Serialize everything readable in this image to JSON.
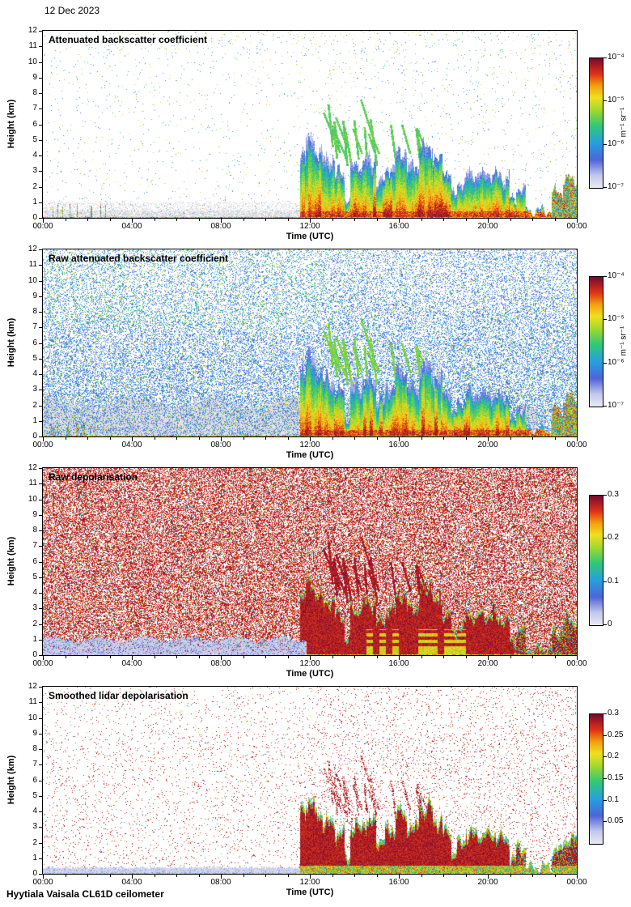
{
  "page": {
    "date_label": "12 Dec 2023",
    "footer_label": "Hyytiala Vaisala CL61D ceilometer"
  },
  "shared": {
    "colormap_stops": [
      [
        0,
        "#ececf4"
      ],
      [
        0.1,
        "#c4c8ec"
      ],
      [
        0.22,
        "#5064d8"
      ],
      [
        0.35,
        "#28a0e0"
      ],
      [
        0.48,
        "#30c878"
      ],
      [
        0.6,
        "#a0d830"
      ],
      [
        0.7,
        "#f0e020"
      ],
      [
        0.79,
        "#f4a010"
      ],
      [
        0.88,
        "#e03418"
      ],
      [
        1,
        "#7a0a32"
      ]
    ],
    "event": {
      "start_utc": 11.55,
      "end_utc": 24,
      "top_km_segments": [
        [
          11.55,
          11.8,
          4.4
        ],
        [
          11.8,
          12.2,
          5.1
        ],
        [
          12.2,
          12.55,
          4.3
        ],
        [
          12.55,
          13.1,
          3.7
        ],
        [
          13.1,
          13.55,
          2.9
        ],
        [
          13.55,
          13.8,
          1.3
        ],
        [
          13.8,
          14.35,
          3.3
        ],
        [
          14.35,
          14.95,
          3.7
        ],
        [
          14.95,
          15.35,
          2.4
        ],
        [
          15.35,
          15.85,
          3.2
        ],
        [
          15.85,
          16.35,
          4.3
        ],
        [
          16.35,
          16.9,
          3.3
        ],
        [
          16.9,
          17.5,
          4.6
        ],
        [
          17.5,
          17.95,
          3.8
        ],
        [
          17.95,
          18.35,
          3.0
        ],
        [
          18.35,
          18.6,
          1.5
        ],
        [
          18.6,
          19.0,
          2.3
        ],
        [
          19.0,
          20.35,
          2.85
        ],
        [
          20.35,
          20.95,
          2.6
        ],
        [
          20.95,
          21.25,
          1.1
        ],
        [
          21.25,
          21.7,
          1.9
        ],
        [
          21.7,
          22.85,
          0.5
        ],
        [
          22.85,
          23.35,
          1.7
        ],
        [
          23.35,
          24.02,
          2.5
        ]
      ],
      "virga_streaks": {
        "count": 22,
        "t_range_utc": [
          12.9,
          17.8
        ],
        "base_km_range": [
          3.1,
          4.7
        ],
        "length_km_range": [
          0.7,
          3.0
        ]
      }
    }
  },
  "chart_data": [
    {
      "type": "heatmap",
      "title": "Attenuated backscatter coefficient",
      "xlabel": "Time (UTC)",
      "ylabel": "Height (km)",
      "xlim_hours": [
        0,
        24
      ],
      "ylim_km": [
        0,
        12
      ],
      "x_ticks": [
        "00:00",
        "04:00",
        "08:00",
        "12:00",
        "16:00",
        "20:00",
        "00:00"
      ],
      "y_ticks": [
        0,
        1,
        2,
        3,
        4,
        5,
        6,
        7,
        8,
        9,
        10,
        11,
        12
      ],
      "colorbar": {
        "scale": "log",
        "min": 1e-07,
        "max": 0.0001,
        "unit": "m⁻¹ sr⁻¹",
        "ticks": [
          {
            "value": 0.0001,
            "label": "10⁻⁴"
          },
          {
            "value": 1e-05,
            "label": "10⁻⁵"
          },
          {
            "value": 1e-06,
            "label": "10⁻⁶"
          },
          {
            "value": 1e-07,
            "label": "10⁻⁷"
          }
        ]
      },
      "summary": "Mostly clear with sparse speckle; shallow grey aerosol layer below ~1 km until ~11:30 UTC with thin coloured columns near 01:00-03:00; precipitating cloud 11:30-24:00 UTC, echo tops 2.5-5 km, strong red/orange backscatter below 1 km; green fall streaks 3-7 km between 13:00 and 17:30 UTC; continuous surface return at 0 km.",
      "render": {
        "style": "bsc_clean",
        "seed": 11
      }
    },
    {
      "type": "heatmap",
      "title": "Raw attenuated backscatter coefficient",
      "xlabel": "Time (UTC)",
      "ylabel": "Height (km)",
      "xlim_hours": [
        0,
        24
      ],
      "ylim_km": [
        0,
        12
      ],
      "x_ticks": [
        "00:00",
        "04:00",
        "08:00",
        "12:00",
        "16:00",
        "20:00",
        "00:00"
      ],
      "y_ticks": [
        0,
        1,
        2,
        3,
        4,
        5,
        6,
        7,
        8,
        9,
        10,
        11,
        12
      ],
      "colorbar": {
        "scale": "log",
        "min": 1e-07,
        "max": 0.0001,
        "unit": "m⁻¹ sr⁻¹",
        "ticks": [
          {
            "value": 0.0001,
            "label": "10⁻⁴"
          },
          {
            "value": 1e-05,
            "label": "10⁻⁵"
          },
          {
            "value": 1e-06,
            "label": "10⁻⁶"
          },
          {
            "value": 1e-07,
            "label": "10⁻⁷"
          }
        ]
      },
      "summary": "Same scene without noise screening: dense blue/green receiver noise over the full range; pale grey region below ~2 km before 12:00 UTC and patchy grey below the rain after 12:00; identical precipitation structures from 11:30 UTC onward.",
      "render": {
        "style": "bsc_raw",
        "seed": 23
      }
    },
    {
      "type": "heatmap",
      "title": "Raw depolarisation",
      "xlabel": "Time (UTC)",
      "ylabel": "Height (km)",
      "xlim_hours": [
        0,
        24
      ],
      "ylim_km": [
        0,
        12
      ],
      "x_ticks": [
        "00:00",
        "04:00",
        "08:00",
        "12:00",
        "16:00",
        "20:00",
        "00:00"
      ],
      "y_ticks": [
        0,
        1,
        2,
        3,
        4,
        5,
        6,
        7,
        8,
        9,
        10,
        11,
        12
      ],
      "colorbar": {
        "scale": "linear",
        "min": 0,
        "max": 0.3,
        "ticks": [
          {
            "value": 0,
            "label": "0"
          },
          {
            "value": 0.1,
            "label": "0.1"
          },
          {
            "value": 0.2,
            "label": "0.2"
          },
          {
            "value": 0.3,
            "label": "0.3"
          }
        ]
      },
      "summary": "Raw depolarisation dominated by dark-red (~0.3) noise everywhere there is no signal; low-depolarisation blue/lavender boundary layer below ~1 km until ~12:00 UTC; solid high-depolarisation precipitation cores after 11:30 UTC with orange/yellow/green fringes below 2 km.",
      "render": {
        "style": "depol_raw",
        "seed": 37
      }
    },
    {
      "type": "heatmap",
      "title": "Smoothed lidar depolarisation",
      "xlabel": "Time (UTC)",
      "ylabel": "Height (km)",
      "xlim_hours": [
        0,
        24
      ],
      "ylim_km": [
        0,
        12
      ],
      "x_ticks": [
        "00:00",
        "04:00",
        "08:00",
        "12:00",
        "16:00",
        "20:00",
        "00:00"
      ],
      "y_ticks": [
        0,
        1,
        2,
        3,
        4,
        5,
        6,
        7,
        8,
        9,
        10,
        11,
        12
      ],
      "colorbar": {
        "scale": "linear",
        "min": 0,
        "max": 0.3,
        "ticks": [
          {
            "value": 0.05,
            "label": "0.05"
          },
          {
            "value": 0.1,
            "label": "0.1"
          },
          {
            "value": 0.15,
            "label": "0.15"
          },
          {
            "value": 0.2,
            "label": "0.2"
          },
          {
            "value": 0.25,
            "label": "0.25"
          },
          {
            "value": 0.3,
            "label": "0.3"
          }
        ]
      },
      "summary": "Noise-screened depolarisation: white background with sparse dark-red speckle; thin low-depolarisation layer below ~0.5 km before 12:00 UTC; precipitation after 11:30 UTC shows high-depolarisation (~0.3) cores up to 2.5-4.5 km with coloured 0.05-0.2 fringes and mixed colours along the surface.",
      "render": {
        "style": "depol_smooth",
        "seed": 53
      }
    }
  ]
}
